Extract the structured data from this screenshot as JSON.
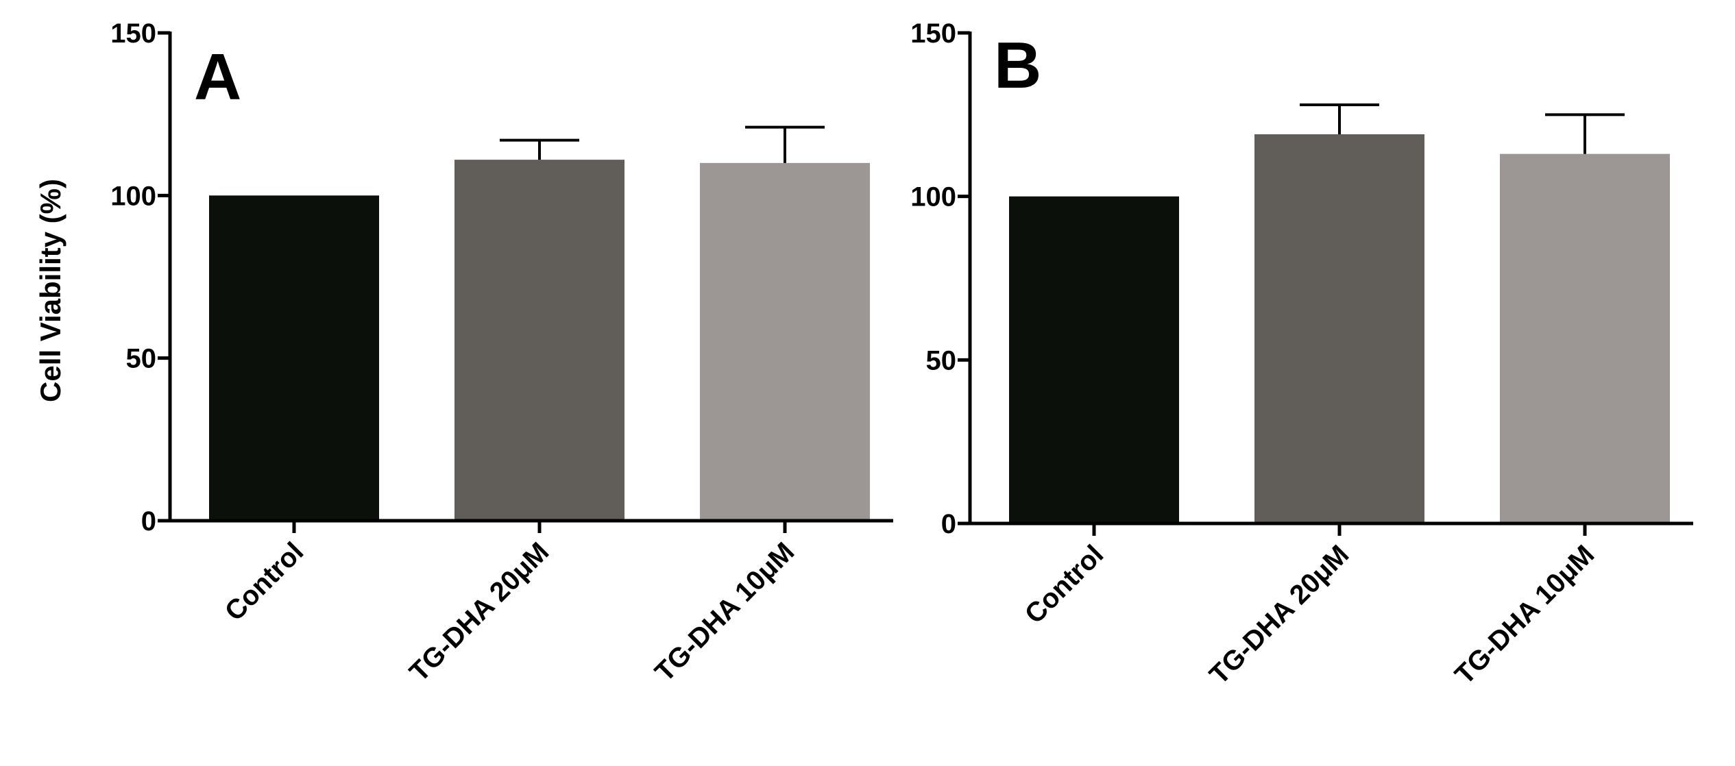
{
  "chart_data": [
    {
      "type": "bar",
      "panel_label": "A",
      "categories": [
        "Control",
        "TG-DHA 20μM",
        "TG-DHA 10μM"
      ],
      "values": [
        100,
        111,
        110
      ],
      "errors": [
        0,
        6,
        11
      ],
      "colors": [
        "#0b100b",
        "#615d58",
        "#9c9794"
      ],
      "ylabel": "Cell Viability (%)",
      "ylim": [
        0,
        150
      ],
      "yticks": [
        "0",
        "50",
        "100",
        "150"
      ]
    },
    {
      "type": "bar",
      "panel_label": "B",
      "categories": [
        "Control",
        "TG-DHA 20μM",
        "TG-DHA 10μM"
      ],
      "values": [
        100,
        119,
        113
      ],
      "errors": [
        0,
        9,
        12
      ],
      "colors": [
        "#0b100b",
        "#615d58",
        "#9c9794"
      ],
      "ylabel": "",
      "ylim": [
        0,
        150
      ],
      "yticks": [
        "0",
        "50",
        "100",
        "150"
      ]
    }
  ]
}
